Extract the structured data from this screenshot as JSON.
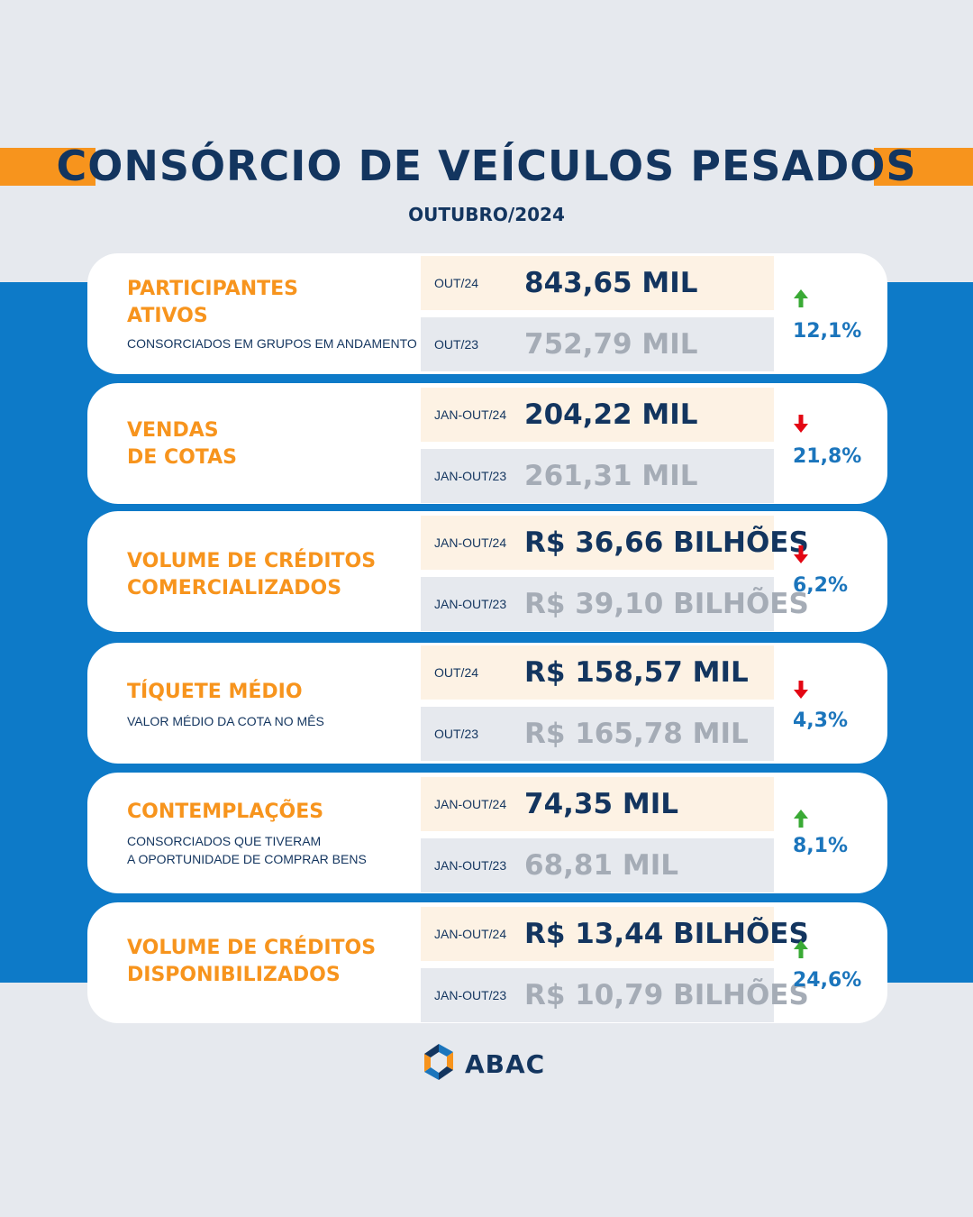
{
  "header": {
    "title": "CONSÓRCIO DE VEÍCULOS PESADOS",
    "subtitle": "OUTUBRO/2024"
  },
  "colors": {
    "navy": "#13355f",
    "orange": "#f7941d",
    "blue": "#0d7ac8",
    "up_arrow": "#3aaa35",
    "down_arrow": "#e30613",
    "percent": "#1b75bc"
  },
  "cards": [
    {
      "label_lines": [
        "PARTICIPANTES",
        "ATIVOS"
      ],
      "description_lines": [
        "CONSORCIADOS EM GRUPOS EM ANDAMENTO"
      ],
      "current": {
        "period": "OUT/24",
        "value": "843,65 MIL"
      },
      "previous": {
        "period": "OUT/23",
        "value": "752,79 MIL"
      },
      "trend": "up",
      "trend_icon": "arrow-up-icon",
      "change": "12,1%"
    },
    {
      "label_lines": [
        "VENDAS",
        "DE COTAS"
      ],
      "description_lines": [],
      "current": {
        "period": "JAN-OUT/24",
        "value": "204,22 MIL"
      },
      "previous": {
        "period": "JAN-OUT/23",
        "value": "261,31 MIL"
      },
      "trend": "down",
      "trend_icon": "arrow-down-icon",
      "change": "21,8%"
    },
    {
      "label_lines": [
        "VOLUME DE CRÉDITOS",
        "COMERCIALIZADOS"
      ],
      "description_lines": [],
      "current": {
        "period": "JAN-OUT/24",
        "value": "R$ 36,66 BILHÕES"
      },
      "previous": {
        "period": "JAN-OUT/23",
        "value": "R$ 39,10 BILHÕES"
      },
      "trend": "down",
      "trend_icon": "arrow-down-icon",
      "change": "6,2%"
    },
    {
      "label_lines": [
        "TÍQUETE MÉDIO"
      ],
      "description_lines": [
        "VALOR MÉDIO DA COTA NO MÊS"
      ],
      "current": {
        "period": "OUT/24",
        "value": "R$ 158,57 MIL"
      },
      "previous": {
        "period": "OUT/23",
        "value": "R$ 165,78 MIL"
      },
      "trend": "down",
      "trend_icon": "arrow-down-icon",
      "change": "4,3%"
    },
    {
      "label_lines": [
        "CONTEMPLAÇÕES"
      ],
      "description_lines": [
        "CONSORCIADOS QUE TIVERAM",
        "A OPORTUNIDADE DE COMPRAR BENS"
      ],
      "current": {
        "period": "JAN-OUT/24",
        "value": "74,35 MIL"
      },
      "previous": {
        "period": "JAN-OUT/23",
        "value": "68,81 MIL"
      },
      "trend": "up",
      "trend_icon": "arrow-up-icon",
      "change": "8,1%"
    },
    {
      "label_lines": [
        "VOLUME DE CRÉDITOS",
        "DISPONIBILIZADOS"
      ],
      "description_lines": [],
      "current": {
        "period": "JAN-OUT/24",
        "value": "R$ 13,44 BILHÕES"
      },
      "previous": {
        "period": "JAN-OUT/23",
        "value": "R$ 10,79 BILHÕES"
      },
      "trend": "up",
      "trend_icon": "arrow-up-icon",
      "change": "24,6%"
    }
  ],
  "footer": {
    "logo_icon": "abac-logo-icon",
    "logo_text": "ABAC"
  }
}
